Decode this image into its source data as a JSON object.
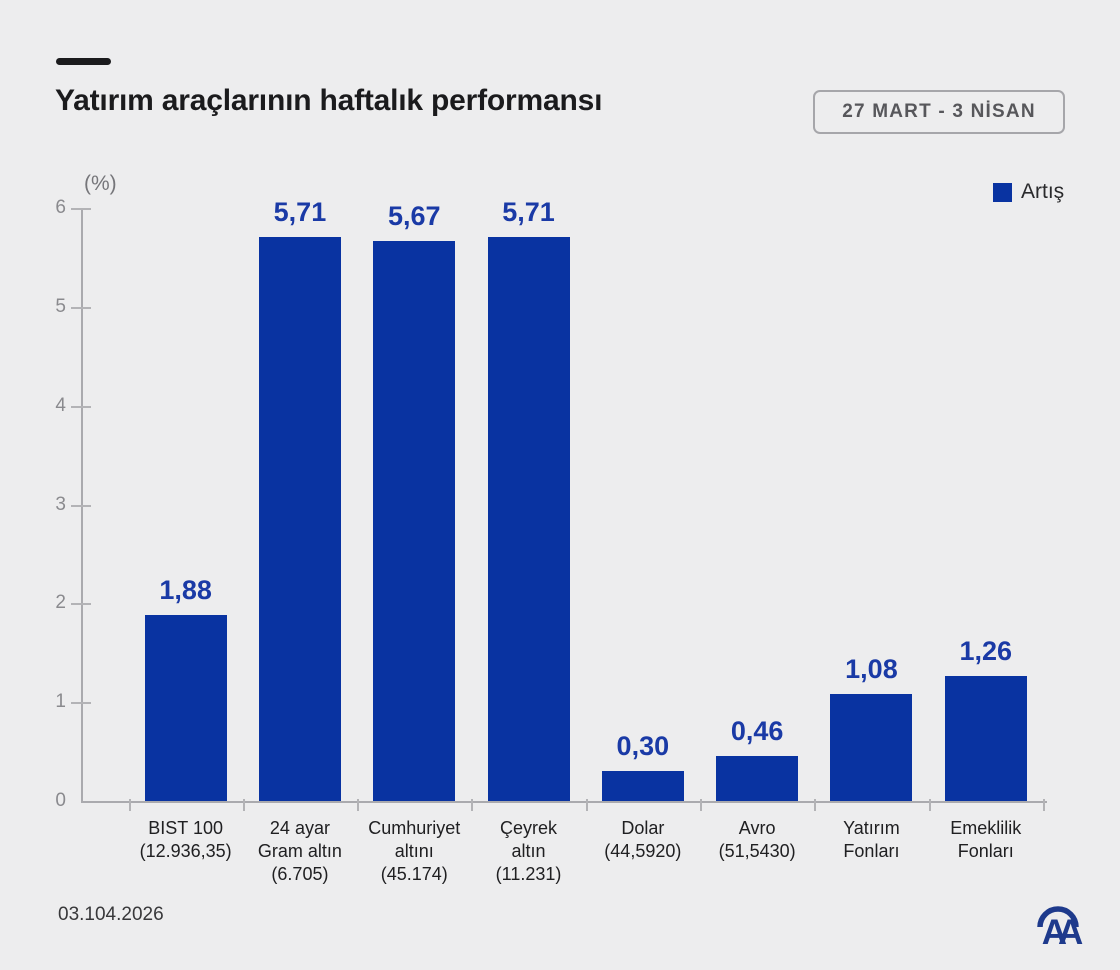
{
  "header": {
    "title": "Yatırım araçlarının haftalık performansı",
    "date_range": "27 MART - 3 NİSAN"
  },
  "legend": {
    "label": "Artış"
  },
  "axis": {
    "unit_label": "(%)"
  },
  "footer": {
    "date": "03.104.2026",
    "logo_text": "AA"
  },
  "colors": {
    "background": "#ededee",
    "bar": "#0933a1",
    "value_label": "#1a3aa6",
    "axis_line": "#aaaaae",
    "tick": "#b3b3b6",
    "tick_label": "#8a8a8e",
    "category_label": "#202022",
    "logo": "#1e3a8c"
  },
  "chart_data": {
    "type": "bar",
    "title": "Yatırım araçlarının haftalık performansı",
    "subtitle": "27 MART - 3 NİSAN",
    "ylabel": "(%)",
    "ylim": [
      0,
      6
    ],
    "yticks": [
      0,
      1,
      2,
      3,
      4,
      5,
      6
    ],
    "grid": false,
    "legend_position": "top-right",
    "legend": [
      {
        "label": "Artış",
        "color": "#0933a1"
      }
    ],
    "categories": [
      {
        "lines": [
          "BIST 100",
          "(12.936,35)"
        ],
        "value": 1.88,
        "value_label": "1,88"
      },
      {
        "lines": [
          "24 ayar",
          "Gram altın",
          "(6.705)"
        ],
        "value": 5.71,
        "value_label": "5,71"
      },
      {
        "lines": [
          "Cumhuriyet",
          "altını",
          "(45.174)"
        ],
        "value": 5.67,
        "value_label": "5,67"
      },
      {
        "lines": [
          "Çeyrek",
          "altın",
          "(11.231)"
        ],
        "value": 5.71,
        "value_label": "5,71"
      },
      {
        "lines": [
          "Dolar",
          "(44,5920)"
        ],
        "value": 0.3,
        "value_label": "0,30"
      },
      {
        "lines": [
          "Avro",
          "(51,5430)"
        ],
        "value": 0.46,
        "value_label": "0,46"
      },
      {
        "lines": [
          "Yatırım",
          "Fonları"
        ],
        "value": 1.08,
        "value_label": "1,08"
      },
      {
        "lines": [
          "Emeklilik",
          "Fonları"
        ],
        "value": 1.26,
        "value_label": "1,26"
      }
    ]
  }
}
